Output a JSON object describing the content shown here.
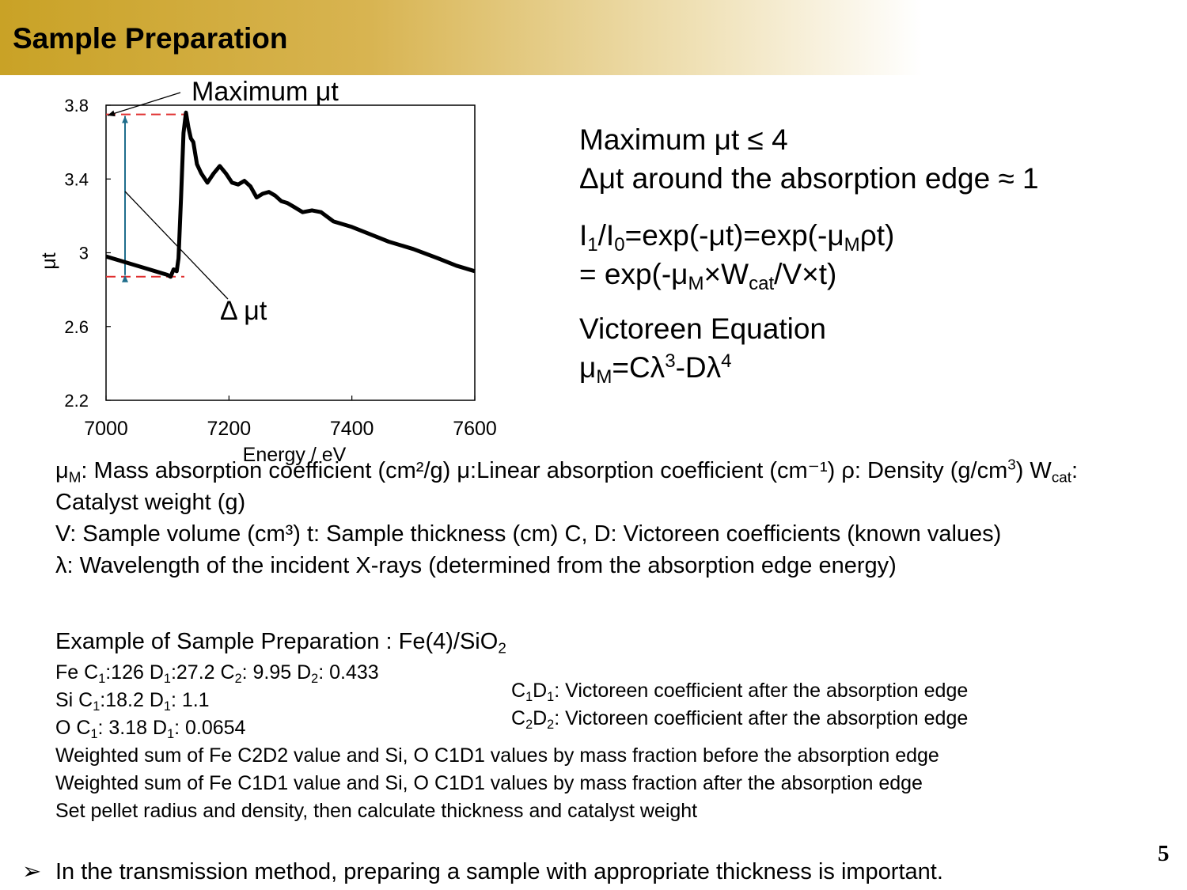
{
  "header": {
    "title": "Sample Preparation"
  },
  "chart_data": {
    "type": "line",
    "xlabel": "Energy / eV",
    "ylabel": "μt",
    "xlim": [
      7000,
      7600
    ],
    "ylim": [
      2.2,
      3.8
    ],
    "xticks": [
      "7000",
      "7200",
      "7400",
      "7600"
    ],
    "yticks": [
      "3.8",
      "3.4",
      "3",
      "2.6",
      "2.2"
    ],
    "series": [
      {
        "x": [
          7000,
          7020,
          7040,
          7060,
          7080,
          7100,
          7105,
          7110,
          7115,
          7118,
          7122,
          7126,
          7130,
          7134,
          7138,
          7142,
          7148,
          7155,
          7165,
          7175,
          7185,
          7195,
          7205,
          7215,
          7225,
          7235,
          7245,
          7255,
          7265,
          7275,
          7285,
          7295,
          7305,
          7320,
          7335,
          7350,
          7370,
          7400,
          7430,
          7460,
          7500,
          7540,
          7570,
          7600
        ],
        "y": [
          2.98,
          2.96,
          2.94,
          2.92,
          2.9,
          2.88,
          2.87,
          2.91,
          2.9,
          2.97,
          3.3,
          3.65,
          3.76,
          3.68,
          3.62,
          3.6,
          3.48,
          3.43,
          3.38,
          3.43,
          3.47,
          3.43,
          3.38,
          3.37,
          3.39,
          3.36,
          3.3,
          3.32,
          3.33,
          3.31,
          3.28,
          3.27,
          3.25,
          3.22,
          3.23,
          3.22,
          3.17,
          3.14,
          3.1,
          3.06,
          3.02,
          2.97,
          2.93,
          2.9
        ]
      }
    ],
    "annotations": {
      "max": "Maximum μt",
      "delta": "Δ μt",
      "max_level": 3.75,
      "min_level": 2.87
    }
  },
  "right": {
    "line1": "Maximum μt ≤ 4",
    "line2": "Δμt around the absorption edge ≈ 1",
    "eq1": {
      "a": "I",
      "s1": "1",
      "b": "/I",
      "s2": "0",
      "c": "=exp(-μt)=exp(-μ",
      "s3": "M",
      "d": "ρt)"
    },
    "eq2": {
      "a": "= exp(-μ",
      "s1": "M",
      "b": "×W",
      "s2": "cat",
      "c": "/V×t)"
    },
    "vic_title": "Victoreen Equation",
    "vic": {
      "a": "μ",
      "s1": "M",
      "b": "=Cλ",
      "p1": "3",
      "c": "-Dλ",
      "p2": "4"
    }
  },
  "defs": {
    "l1": {
      "a": "μ",
      "s1": "M",
      "b": ": Mass absorption coefficient (cm²/g) μ:Linear absorption coefficient (cm⁻¹) ρ: Density (g/cm",
      "p1": "3",
      "c": ") W",
      "s2": "cat",
      "d": ": Catalyst weight (g)"
    },
    "l2": "V: Sample volume (cm³)  t: Sample thickness (cm)  C, D: Victoreen coefficients (known values)",
    "l3": "λ: Wavelength of the incident X-rays (determined from the absorption edge energy)"
  },
  "example": {
    "title": {
      "a": "Example of Sample Preparation : Fe(4)/SiO",
      "s1": "2"
    },
    "fe": {
      "a": "Fe C",
      "s1": "1",
      "b": ":126 D",
      "s2": "1",
      "c": ":27.2 C",
      "s3": "2",
      "d": ": 9.95 D",
      "s4": "2",
      "e": ": 0.433"
    },
    "si": {
      "a": "Si C",
      "s1": "1",
      "b": ":18.2 D",
      "s2": "1",
      "c": ": 1.1"
    },
    "o": {
      "a": "O  C",
      "s1": "1",
      "b": ": 3.18 D",
      "s2": "1",
      "c": ": 0.0654"
    },
    "w1": "Weighted sum of Fe C2D2 value and Si, O C1D1 values by mass fraction before the absorption edge",
    "w2": "Weighted sum of Fe C1D1 value and Si, O C1D1 values by mass fraction after the absorption edge",
    "w3": "Set pellet radius and density, then calculate thickness and catalyst weight"
  },
  "notes": {
    "n1": {
      "a": "C",
      "s1": "1",
      "b": "D",
      "s2": "1",
      "c": ": Victoreen coefficient after the absorption edge"
    },
    "n2": {
      "a": "C",
      "s1": "2",
      "b": "D",
      "s2": "2",
      "c": ": Victoreen coefficient after the absorption edge"
    }
  },
  "bullet": {
    "marker": "➢",
    "text": "In the transmission method, preparing a sample with appropriate thickness is important."
  },
  "page_number": "5"
}
